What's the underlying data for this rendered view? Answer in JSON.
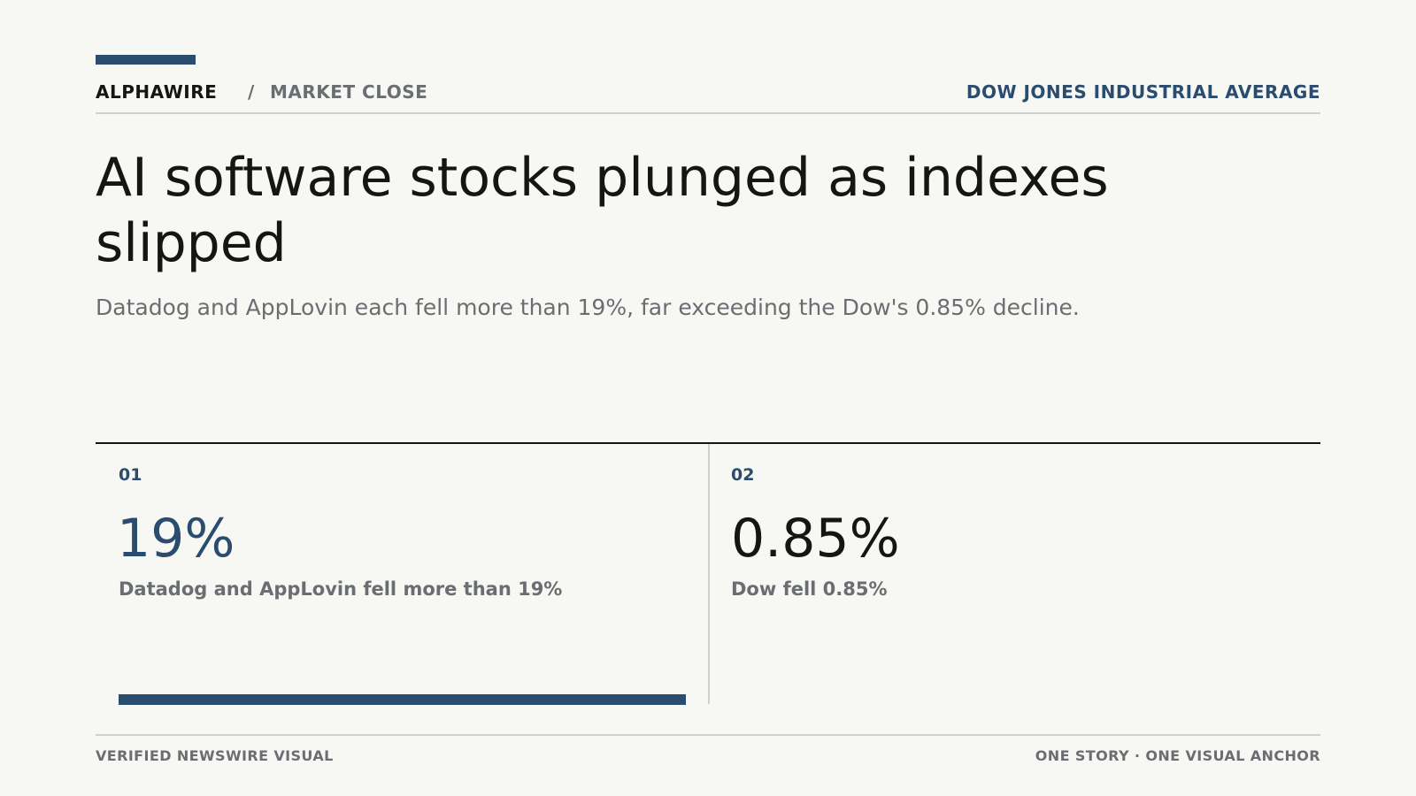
{
  "colors": {
    "background": "#f7f7f4",
    "accent": "#2a4c6e",
    "text": "#151515",
    "muted": "#6a6d72",
    "rule": "#cfcfcf"
  },
  "header": {
    "brand": "ALPHAWIRE",
    "separator": "/",
    "section": "MARKET CLOSE",
    "topic": "DOW JONES INDUSTRIAL AVERAGE"
  },
  "article": {
    "headline": "AI software stocks plunged as indexes slipped",
    "dek": "Datadog and AppLovin each fell more than 19%, far exceeding the Dow's 0.85% decline."
  },
  "stats": [
    {
      "number": "01",
      "value": "19%",
      "caption": "Datadog and AppLovin fell more than 19%",
      "bar_fraction": 1.0
    },
    {
      "number": "02",
      "value": "0.85%",
      "caption": "Dow fell 0.85%"
    }
  ],
  "footer": {
    "left": "VERIFIED NEWSWIRE VISUAL",
    "right": "ONE STORY · ONE VISUAL ANCHOR"
  }
}
